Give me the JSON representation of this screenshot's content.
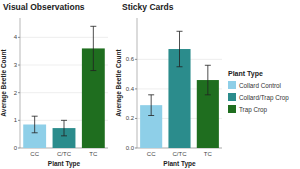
{
  "chart_data": [
    {
      "type": "bar",
      "title": "Visual Observations",
      "x_label": "Plant Type",
      "y_label": "Average Beetle Count",
      "categories": [
        "CC",
        "C/TC",
        "TC"
      ],
      "values": [
        0.85,
        0.72,
        3.6
      ],
      "errors": [
        0.3,
        0.28,
        0.8
      ],
      "colors": [
        "#8ecfe8",
        "#2b8c8c",
        "#1f6e1f"
      ],
      "ylim": [
        0,
        4.7
      ],
      "yticks": [
        0,
        1,
        2,
        3,
        4
      ],
      "grid": true
    },
    {
      "type": "bar",
      "title": "Sticky Cards",
      "x_label": "Plant Type",
      "y_label": "Average Beetle Count",
      "categories": [
        "CC",
        "C/TC",
        "TC"
      ],
      "values": [
        0.29,
        0.67,
        0.46
      ],
      "errors": [
        0.07,
        0.12,
        0.1
      ],
      "colors": [
        "#8ecfe8",
        "#2b8c8c",
        "#1f6e1f"
      ],
      "ylim": [
        0,
        0.88
      ],
      "yticks": [
        {
          "value": 0,
          "label": "0.0"
        },
        0.2,
        0.4,
        0.6
      ],
      "grid": true,
      "legend": "right"
    }
  ],
  "shared_legend": {
    "title": "Plant Type",
    "names": [
      "Collard Control",
      "Collard/Trap Crop",
      "Trap Crop"
    ],
    "colors": [
      "#8ecfe8",
      "#2b8c8c",
      "#1f6e1f"
    ]
  }
}
